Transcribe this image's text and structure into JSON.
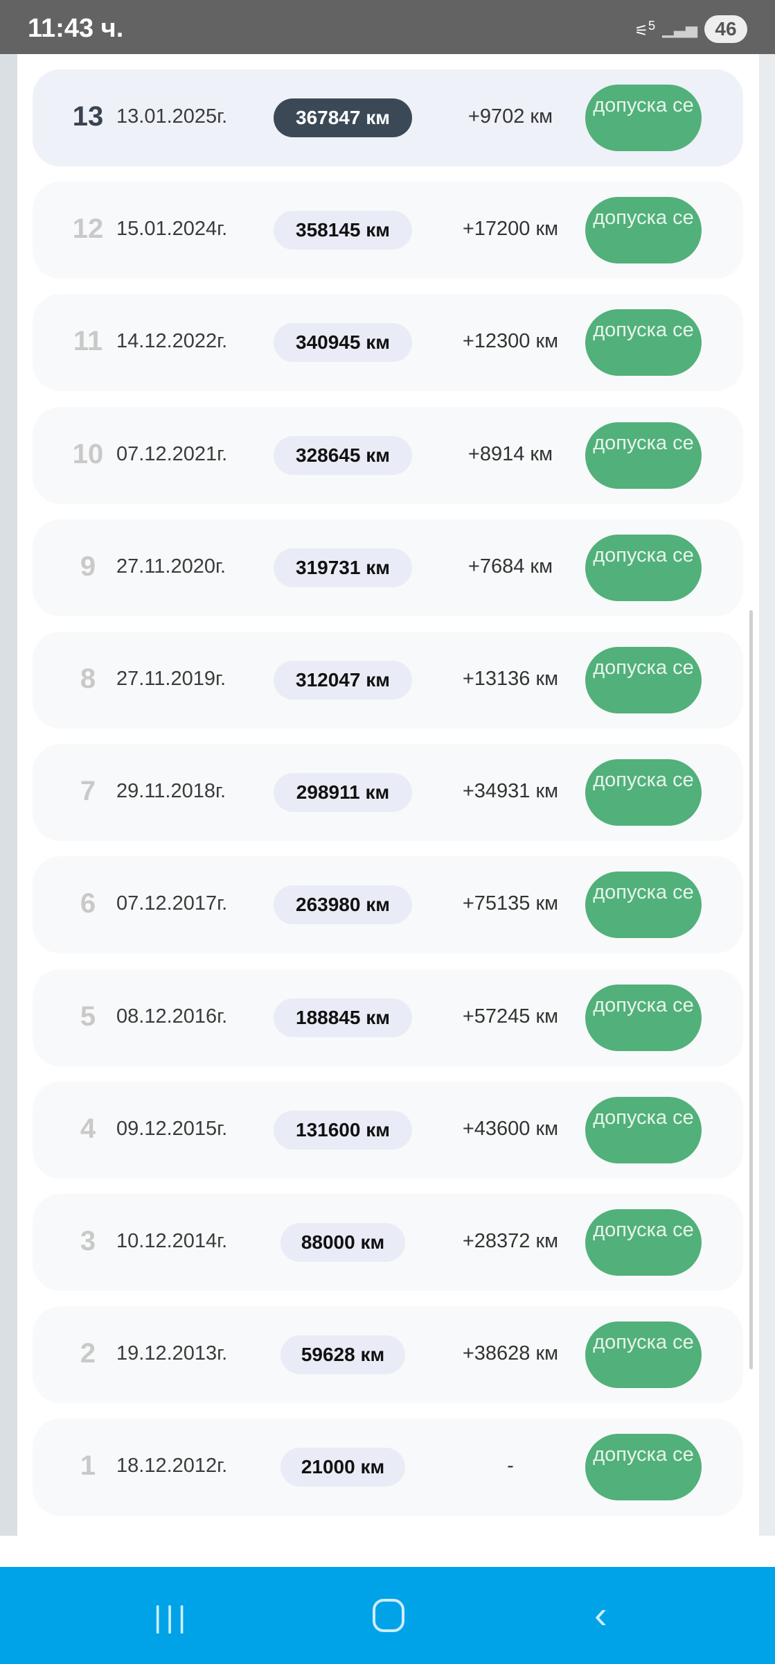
{
  "status_bar": {
    "time": "11:43 ч.",
    "network": "5",
    "battery": "46"
  },
  "colors": {
    "button": "#52b07a",
    "current_pill": "#3b4957",
    "nav": "#00a2e8"
  },
  "rows": [
    {
      "n": "13",
      "date": "13.01.2025г.",
      "km": "367847 км",
      "delta": "+9702 км",
      "status": "допуска се",
      "current": true
    },
    {
      "n": "12",
      "date": "15.01.2024г.",
      "km": "358145 км",
      "delta": "+17200 км",
      "status": "допуска се"
    },
    {
      "n": "11",
      "date": "14.12.2022г.",
      "km": "340945 км",
      "delta": "+12300 км",
      "status": "допуска се"
    },
    {
      "n": "10",
      "date": "07.12.2021г.",
      "km": "328645 км",
      "delta": "+8914 км",
      "status": "допуска се"
    },
    {
      "n": "9",
      "date": "27.11.2020г.",
      "km": "319731 км",
      "delta": "+7684 км",
      "status": "допуска се"
    },
    {
      "n": "8",
      "date": "27.11.2019г.",
      "km": "312047 км",
      "delta": "+13136 км",
      "status": "допуска се"
    },
    {
      "n": "7",
      "date": "29.11.2018г.",
      "km": "298911 км",
      "delta": "+34931 км",
      "status": "допуска се"
    },
    {
      "n": "6",
      "date": "07.12.2017г.",
      "km": "263980 км",
      "delta": "+75135 км",
      "status": "допуска се"
    },
    {
      "n": "5",
      "date": "08.12.2016г.",
      "km": "188845 км",
      "delta": "+57245 км",
      "status": "допуска се"
    },
    {
      "n": "4",
      "date": "09.12.2015г.",
      "km": "131600 км",
      "delta": "+43600 км",
      "status": "допуска се"
    },
    {
      "n": "3",
      "date": "10.12.2014г.",
      "km": "88000 км",
      "delta": "+28372 км",
      "status": "допуска се"
    },
    {
      "n": "2",
      "date": "19.12.2013г.",
      "km": "59628 км",
      "delta": "+38628 км",
      "status": "допуска се"
    },
    {
      "n": "1",
      "date": "18.12.2012г.",
      "km": "21000 км",
      "delta": "-",
      "status": "допуска се"
    }
  ]
}
